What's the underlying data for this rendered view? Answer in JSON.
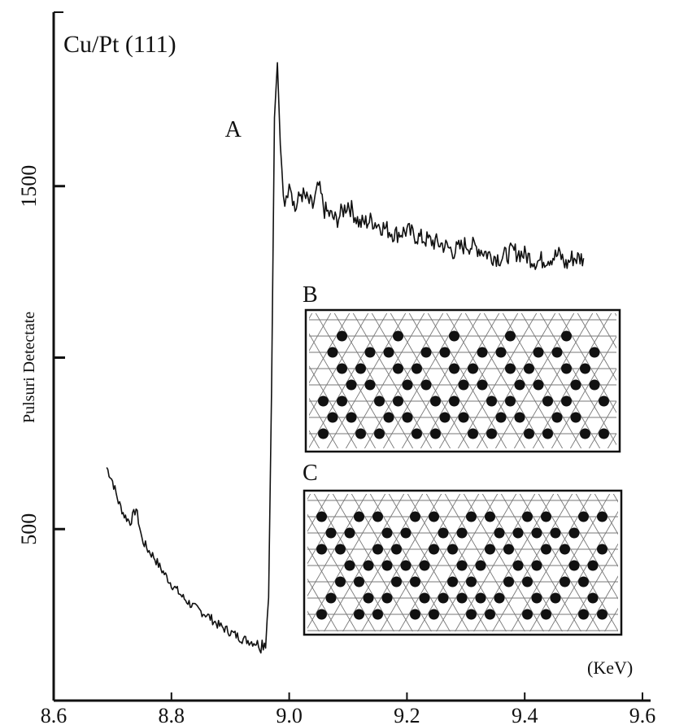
{
  "chart_data": {
    "type": "line",
    "title": "Cu/Pt (111)",
    "xlabel": "(KeV)",
    "ylabel": "Pulsuri Detectate",
    "xlim": [
      8.6,
      9.6
    ],
    "ylim": [
      0,
      2000
    ],
    "x_ticks": [
      8.6,
      8.8,
      9.0,
      9.2,
      9.4,
      9.6
    ],
    "x_tick_labels": [
      "8.6",
      "8.8",
      "9.0",
      "9.2",
      "9.4",
      "9.6"
    ],
    "y_ticks": [
      500,
      1000,
      1500
    ],
    "y_tick_labels": [
      "500",
      "",
      "1500"
    ],
    "grid": false,
    "annotations": [
      {
        "text": "A",
        "x": 8.96,
        "y": 1630
      }
    ],
    "series": [
      {
        "x": [
          8.69,
          8.7,
          8.71,
          8.72,
          8.73,
          8.74,
          8.75,
          8.76,
          8.77,
          8.78,
          8.8,
          8.82,
          8.84,
          8.86,
          8.88,
          8.9,
          8.92,
          8.94,
          8.95,
          8.96,
          8.965,
          8.97,
          8.975,
          8.98,
          8.985,
          8.99,
          8.995,
          9.0,
          9.01,
          9.02,
          9.03,
          9.04,
          9.05,
          9.06,
          9.08,
          9.1,
          9.12,
          9.14,
          9.16,
          9.18,
          9.2,
          9.22,
          9.24,
          9.26,
          9.28,
          9.3,
          9.32,
          9.34,
          9.36,
          9.38,
          9.4,
          9.42,
          9.44,
          9.46,
          9.47,
          9.48,
          9.5
        ],
        "y": [
          680,
          640,
          580,
          540,
          520,
          560,
          470,
          440,
          420,
          390,
          340,
          300,
          270,
          250,
          220,
          200,
          180,
          170,
          165,
          175,
          300,
          900,
          1700,
          1860,
          1620,
          1480,
          1450,
          1530,
          1430,
          1480,
          1460,
          1440,
          1500,
          1430,
          1400,
          1450,
          1390,
          1400,
          1380,
          1360,
          1370,
          1350,
          1340,
          1330,
          1310,
          1330,
          1320,
          1300,
          1290,
          1310,
          1300,
          1280,
          1290,
          1300,
          1270,
          1290,
          1290
        ]
      }
    ]
  },
  "insets": [
    {
      "label": "B"
    },
    {
      "label": "C"
    }
  ]
}
